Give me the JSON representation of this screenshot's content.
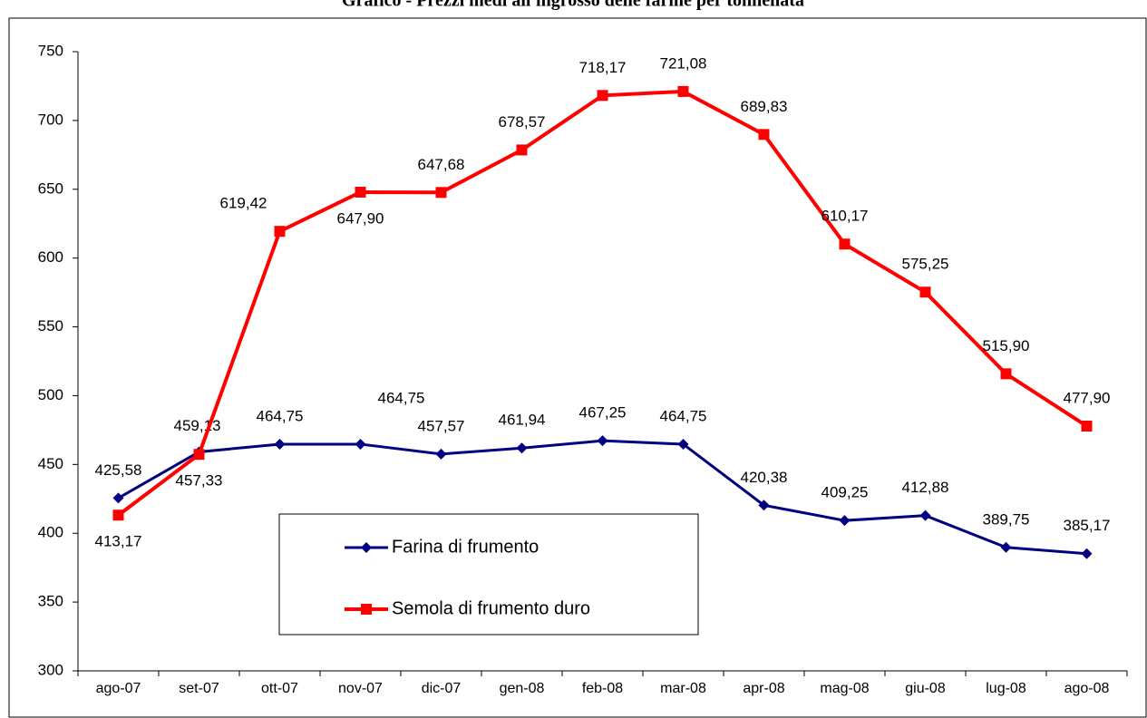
{
  "chart_data": {
    "type": "line",
    "title": "Grafico - Prezzi medi all'ingrosso delle farine per tonnellata",
    "categories": [
      "ago-07",
      "set-07",
      "ott-07",
      "nov-07",
      "dic-07",
      "gen-08",
      "feb-08",
      "mar-08",
      "apr-08",
      "mag-08",
      "giu-08",
      "lug-08",
      "ago-08"
    ],
    "series": [
      {
        "name": "Farina di frumento",
        "color": "#000080",
        "marker": "diamond",
        "values": [
          425.58,
          459.13,
          464.75,
          464.75,
          457.57,
          461.94,
          467.25,
          464.75,
          420.38,
          409.25,
          412.88,
          389.75,
          385.17
        ],
        "value_labels": [
          "425,58",
          "459,13",
          "464,75",
          "464,75",
          "457,57",
          "461,94",
          "467,25",
          "464,75",
          "420,38",
          "409,25",
          "412,88",
          "389,75",
          "385,17"
        ]
      },
      {
        "name": "Semola di frumento duro",
        "color": "#ff0000",
        "marker": "square",
        "values": [
          413.17,
          457.33,
          619.42,
          647.9,
          647.68,
          678.57,
          718.17,
          721.08,
          689.83,
          610.17,
          575.25,
          515.9,
          477.9
        ],
        "value_labels": [
          "413,17",
          "457,33",
          "619,42",
          "647,90",
          "647,68",
          "678,57",
          "718,17",
          "721,08",
          "689,83",
          "610,17",
          "575,25",
          "515,90",
          "477,90"
        ]
      }
    ],
    "ylim": [
      300,
      750
    ],
    "yticks": [
      300,
      350,
      400,
      450,
      500,
      550,
      600,
      650,
      700,
      750
    ]
  }
}
